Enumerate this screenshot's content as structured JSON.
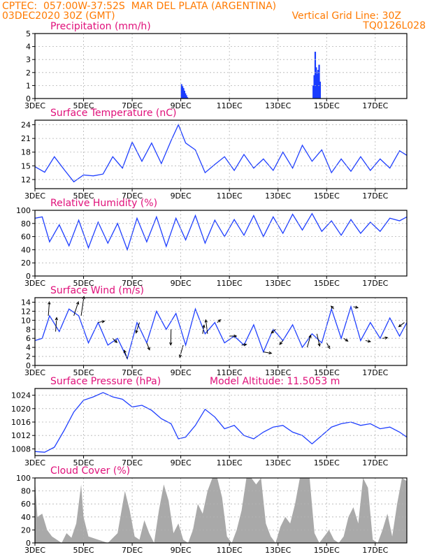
{
  "header": {
    "line1": "CPTEC:  057:00W-37:52S  MAR DEL PLATA (ARGENTINA)",
    "line2_left": "03DEC2020 30Z (GMT)",
    "line2_right": "Vertical Grid Line: 30Z",
    "line3_right": "TQ0126L028"
  },
  "colors": {
    "header": "#ff7a00",
    "title": "#e0107a",
    "line": "#1f3fff",
    "bar": "#1a3cff",
    "cloud": "#a9a9a9",
    "grid": "#b3b3b3"
  },
  "x_axis": {
    "tick_labels": [
      "3DEC",
      "5DEC",
      "7DEC",
      "9DEC",
      "11DEC",
      "13DEC",
      "15DEC",
      "17DEC"
    ],
    "tick_days": [
      0,
      2,
      4,
      6,
      8,
      10,
      12,
      14
    ],
    "range_days": [
      0,
      15.3
    ]
  },
  "chart_data": [
    {
      "id": "precip",
      "type": "bar",
      "title": "Precipitation (mm/h)",
      "ylim": [
        0,
        5
      ],
      "yticks": [
        0,
        1,
        2,
        3,
        4,
        5
      ],
      "x": [
        6.0,
        6.04,
        6.08,
        6.12,
        6.16,
        6.2,
        6.24,
        11.42,
        11.46,
        11.5,
        11.54,
        11.58,
        11.62,
        11.66,
        11.7
      ],
      "values": [
        1.1,
        0.95,
        0.8,
        0.6,
        0.4,
        0.25,
        0.1,
        1.0,
        1.8,
        3.6,
        2.4,
        1.9,
        2.2,
        2.6,
        1.3
      ]
    },
    {
      "id": "temp",
      "type": "line",
      "title": "Surface Temperature (nC)",
      "ylim": [
        10,
        25
      ],
      "yticks": [
        12,
        15,
        18,
        21,
        24
      ],
      "x": [
        0,
        0.4,
        0.8,
        1.2,
        1.6,
        2.0,
        2.4,
        2.8,
        3.2,
        3.6,
        4.0,
        4.4,
        4.8,
        5.2,
        5.6,
        5.9,
        6.2,
        6.6,
        7.0,
        7.4,
        7.8,
        8.2,
        8.6,
        9.0,
        9.4,
        9.8,
        10.2,
        10.6,
        11.0,
        11.4,
        11.8,
        12.2,
        12.6,
        13.0,
        13.4,
        13.8,
        14.2,
        14.6,
        15.0,
        15.3
      ],
      "values": [
        14.8,
        13.6,
        17.0,
        14.2,
        11.5,
        13.0,
        12.8,
        13.2,
        17.0,
        14.5,
        20.2,
        16.0,
        20.0,
        15.5,
        20.5,
        24.0,
        20.0,
        18.5,
        13.5,
        15.3,
        17.0,
        14.0,
        17.5,
        14.5,
        16.5,
        14.0,
        18.0,
        14.5,
        19.5,
        16.0,
        18.5,
        13.5,
        16.5,
        13.8,
        17.0,
        14.0,
        16.5,
        14.5,
        18.3,
        17.3
      ]
    },
    {
      "id": "rh",
      "type": "line",
      "title": "Relative Humidity (%)",
      "ylim": [
        0,
        100
      ],
      "yticks": [
        0,
        20,
        40,
        60,
        80,
        100
      ],
      "x": [
        0,
        0.3,
        0.6,
        1.0,
        1.4,
        1.8,
        2.2,
        2.6,
        3.0,
        3.4,
        3.8,
        4.2,
        4.6,
        5.0,
        5.4,
        5.8,
        6.2,
        6.6,
        7.0,
        7.4,
        7.8,
        8.2,
        8.6,
        9.0,
        9.4,
        9.8,
        10.2,
        10.6,
        11.0,
        11.4,
        11.8,
        12.2,
        12.6,
        13.0,
        13.4,
        13.8,
        14.2,
        14.6,
        15.0,
        15.3
      ],
      "values": [
        88,
        90,
        52,
        78,
        46,
        85,
        43,
        82,
        50,
        80,
        40,
        88,
        52,
        90,
        45,
        88,
        55,
        92,
        50,
        85,
        60,
        86,
        62,
        92,
        60,
        90,
        65,
        94,
        70,
        95,
        68,
        84,
        62,
        86,
        65,
        82,
        68,
        88,
        84,
        90
      ]
    },
    {
      "id": "wind",
      "type": "line",
      "title": "Surface Wind (m/s)",
      "ylim": [
        0,
        15
      ],
      "yticks": [
        0,
        2,
        4,
        6,
        8,
        10,
        12,
        14
      ],
      "x": [
        0,
        0.3,
        0.6,
        1.0,
        1.4,
        1.8,
        2.2,
        2.6,
        3.0,
        3.4,
        3.8,
        4.2,
        4.6,
        5.0,
        5.4,
        5.8,
        6.2,
        6.6,
        7.0,
        7.4,
        7.8,
        8.2,
        8.6,
        9.0,
        9.4,
        9.8,
        10.2,
        10.6,
        11.0,
        11.4,
        11.8,
        12.2,
        12.6,
        13.0,
        13.4,
        13.8,
        14.2,
        14.6,
        15.0,
        15.3
      ],
      "values": [
        5.5,
        6.0,
        11.0,
        7.5,
        12.5,
        11.0,
        5.0,
        9.5,
        4.5,
        6.0,
        1.5,
        9.5,
        5.0,
        12.0,
        8.0,
        11.5,
        4.5,
        12.5,
        7.0,
        9.5,
        5.0,
        6.5,
        4.5,
        9.0,
        3.0,
        8.0,
        5.5,
        9.0,
        4.0,
        7.0,
        5.0,
        12.5,
        6.0,
        13.0,
        5.5,
        9.5,
        6.0,
        10.5,
        6.5,
        9.5
      ],
      "arrows": [
        {
          "x": 0.55,
          "u": 0.3,
          "v": 4.0
        },
        {
          "x": 0.85,
          "u": 0.3,
          "v": 4.0
        },
        {
          "x": 1.6,
          "u": 1.3,
          "v": 4.0
        },
        {
          "x": 1.9,
          "u": 0.8,
          "v": 5.5
        },
        {
          "x": 2.6,
          "u": 1.8,
          "v": 0.4
        },
        {
          "x": 3.2,
          "u": 1.2,
          "v": -1.2
        },
        {
          "x": 3.8,
          "u": -0.9,
          "v": 2.4
        },
        {
          "x": 4.3,
          "u": -1.0,
          "v": -3.0
        },
        {
          "x": 4.6,
          "u": 0.8,
          "v": -2.0
        },
        {
          "x": 5.6,
          "u": -0.1,
          "v": -4.5
        },
        {
          "x": 6.1,
          "u": -1.0,
          "v": -3.5
        },
        {
          "x": 6.9,
          "u": 0.4,
          "v": 2.5
        },
        {
          "x": 7.1,
          "u": -0.5,
          "v": 4.0
        },
        {
          "x": 7.5,
          "u": 1.0,
          "v": 0.8
        },
        {
          "x": 8.0,
          "u": 2.0,
          "v": 0.0
        },
        {
          "x": 8.5,
          "u": 1.4,
          "v": 0.2
        },
        {
          "x": 9.4,
          "u": 2.3,
          "v": -0.4
        },
        {
          "x": 9.9,
          "u": -1.2,
          "v": -1.1
        },
        {
          "x": 10.2,
          "u": -0.9,
          "v": -1.1
        },
        {
          "x": 11.2,
          "u": 1.0,
          "v": 3.5
        },
        {
          "x": 11.6,
          "u": 0.8,
          "v": -3.5
        },
        {
          "x": 12.0,
          "u": 0.9,
          "v": -1.6
        },
        {
          "x": 12.3,
          "u": -0.8,
          "v": 0.8
        },
        {
          "x": 12.7,
          "u": 1.2,
          "v": -0.8
        },
        {
          "x": 13.1,
          "u": 1.3,
          "v": -0.3
        },
        {
          "x": 13.6,
          "u": 1.4,
          "v": -0.3
        },
        {
          "x": 14.3,
          "u": 1.4,
          "v": 0.2
        },
        {
          "x": 15.2,
          "u": -1.6,
          "v": -1.2
        }
      ]
    },
    {
      "id": "press",
      "type": "line",
      "title": "Surface Pressure (hPa)",
      "subtitle": "Model Altitude: 11.5053 m",
      "ylim": [
        1006,
        1026
      ],
      "yticks": [
        1008,
        1012,
        1016,
        1020,
        1024
      ],
      "x": [
        0,
        0.4,
        0.8,
        1.2,
        1.6,
        2.0,
        2.4,
        2.8,
        3.2,
        3.6,
        4.0,
        4.4,
        4.8,
        5.2,
        5.6,
        5.9,
        6.2,
        6.6,
        7.0,
        7.4,
        7.8,
        8.2,
        8.6,
        9.0,
        9.4,
        9.8,
        10.2,
        10.6,
        11.0,
        11.4,
        11.8,
        12.2,
        12.6,
        13.0,
        13.4,
        13.8,
        14.2,
        14.6,
        15.0,
        15.3
      ],
      "values": [
        1007.2,
        1007.0,
        1008.5,
        1013.5,
        1019.0,
        1022.5,
        1023.5,
        1024.8,
        1023.5,
        1022.8,
        1020.5,
        1021.0,
        1019.5,
        1017.0,
        1015.5,
        1011.0,
        1011.5,
        1015.0,
        1019.8,
        1017.5,
        1014.0,
        1015.0,
        1012.0,
        1011.0,
        1013.0,
        1014.5,
        1015.0,
        1013.0,
        1012.0,
        1009.5,
        1012.0,
        1014.5,
        1015.5,
        1016.0,
        1015.0,
        1015.5,
        1014.0,
        1014.5,
        1013.0,
        1011.5
      ]
    },
    {
      "id": "cloud",
      "type": "area",
      "title": "Cloud Cover (%)",
      "ylim": [
        0,
        100
      ],
      "yticks": [
        0,
        20,
        40,
        60,
        80,
        100
      ],
      "x": [
        0,
        0.1,
        0.3,
        0.5,
        0.7,
        0.9,
        1.1,
        1.3,
        1.5,
        1.7,
        1.9,
        2.0,
        2.2,
        2.6,
        3.0,
        3.4,
        3.7,
        3.9,
        4.1,
        4.3,
        4.5,
        4.7,
        4.9,
        5.1,
        5.3,
        5.5,
        5.7,
        5.9,
        6.1,
        6.3,
        6.5,
        6.7,
        6.9,
        7.1,
        7.3,
        7.5,
        7.7,
        7.9,
        8.1,
        8.3,
        8.5,
        8.7,
        8.9,
        9.1,
        9.3,
        9.5,
        9.7,
        9.9,
        10.1,
        10.3,
        10.5,
        10.7,
        10.9,
        11.1,
        11.3,
        11.5,
        11.7,
        11.9,
        12.1,
        12.3,
        12.5,
        12.7,
        12.9,
        13.1,
        13.3,
        13.5,
        13.7,
        13.9,
        14.1,
        14.3,
        14.5,
        14.7,
        14.9,
        15.1,
        15.3
      ],
      "values": [
        96,
        40,
        45,
        20,
        10,
        5,
        0,
        15,
        8,
        30,
        90,
        40,
        10,
        5,
        0,
        15,
        80,
        50,
        10,
        5,
        35,
        15,
        0,
        50,
        90,
        65,
        15,
        30,
        5,
        0,
        20,
        60,
        45,
        80,
        100,
        100,
        70,
        10,
        0,
        20,
        50,
        100,
        100,
        90,
        100,
        30,
        10,
        0,
        25,
        40,
        30,
        60,
        100,
        100,
        100,
        15,
        0,
        10,
        20,
        5,
        0,
        10,
        40,
        55,
        30,
        100,
        85,
        5,
        0,
        20,
        45,
        10,
        60,
        100,
        95
      ]
    }
  ],
  "panels": [
    {
      "id": "precip",
      "x0": 50,
      "x1": 582,
      "y_top": 48,
      "y_bot": 141
    },
    {
      "id": "temp",
      "x0": 50,
      "x1": 582,
      "y_top": 172,
      "y_bot": 270
    },
    {
      "id": "rh",
      "x0": 50,
      "x1": 582,
      "y_top": 301,
      "y_bot": 395
    },
    {
      "id": "wind",
      "x0": 50,
      "x1": 582,
      "y_top": 426,
      "y_bot": 523
    },
    {
      "id": "press",
      "x0": 50,
      "x1": 582,
      "y_top": 556,
      "y_bot": 652
    },
    {
      "id": "cloud",
      "x0": 50,
      "x1": 582,
      "y_top": 684,
      "y_bot": 777
    }
  ]
}
